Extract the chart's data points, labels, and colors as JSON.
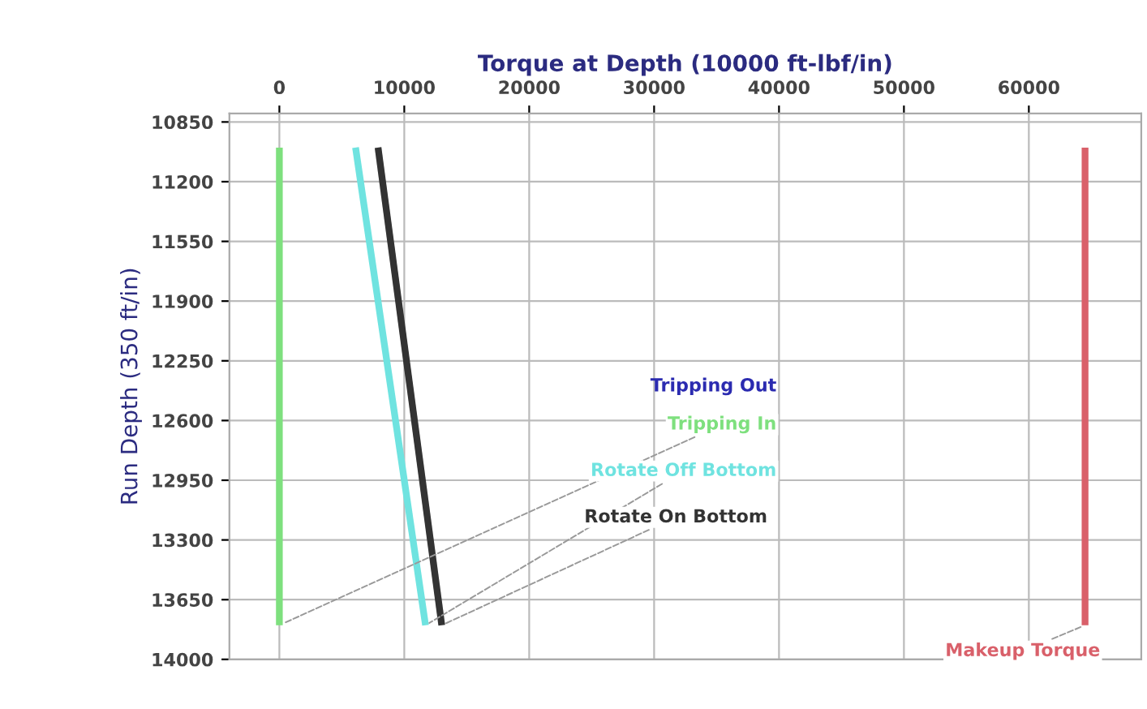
{
  "chart_data": {
    "type": "line",
    "xlabel": "Torque at Depth (10000 ft-lbf/in)",
    "ylabel": "Run Depth (350 ft/in)",
    "xlim": [
      -4000,
      69000
    ],
    "xticks": [
      0,
      10000,
      20000,
      30000,
      40000,
      50000,
      60000
    ],
    "ylim": [
      14000,
      10800
    ],
    "yticks": [
      10850,
      11200,
      11550,
      11900,
      12250,
      12600,
      12950,
      13300,
      13650,
      14000
    ],
    "grid": true,
    "legend": false,
    "series": [
      {
        "name": "Tripping Out",
        "color": "#2b2bb0",
        "x": [
          null,
          null
        ],
        "values": [
          null,
          null
        ]
      },
      {
        "name": "Tripping In",
        "color": "#7ee07e",
        "x": [
          0,
          0
        ],
        "values": [
          11000,
          13800
        ]
      },
      {
        "name": "Rotate Off Bottom",
        "color": "#6fe3e0",
        "x": [
          6100,
          11700
        ],
        "values": [
          11000,
          13800
        ]
      },
      {
        "name": "Rotate On Bottom",
        "color": "#333333",
        "x": [
          7900,
          13000
        ],
        "values": [
          11000,
          13800
        ]
      },
      {
        "name": "Makeup Torque",
        "color": "#d9606a",
        "x": [
          64500,
          64500
        ],
        "values": [
          11000,
          13800
        ]
      }
    ]
  }
}
